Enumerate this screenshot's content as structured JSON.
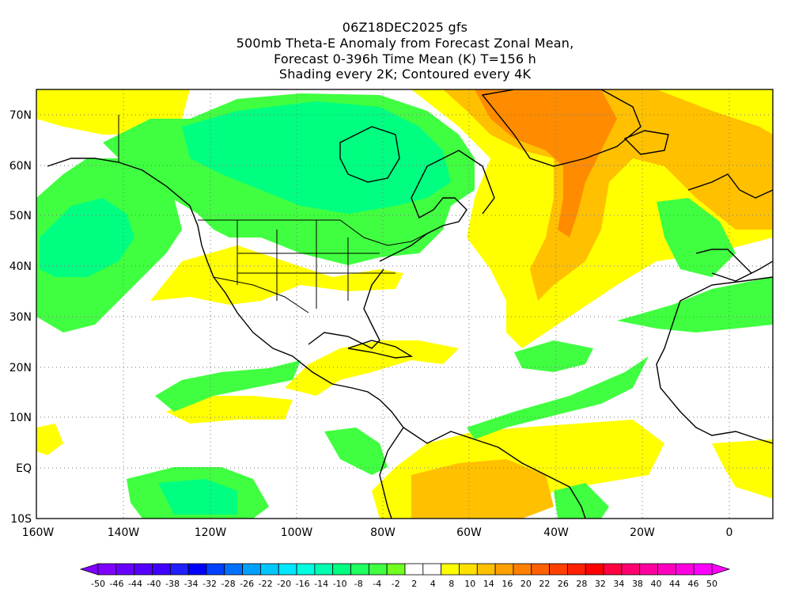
{
  "title": {
    "line1": "06Z18DEC2025 gfs",
    "line2": "500mb Theta-E Anomaly from Forecast Zonal Mean,",
    "line3": "Forecast 0-396h Time Mean (K) T=156 h",
    "line4": "Shading every 2K; Contoured every 4K"
  },
  "map": {
    "lat_range": [
      "10S",
      "75N"
    ],
    "lon_range": [
      "160W",
      "10E"
    ],
    "lat_ticks": [
      "70N",
      "60N",
      "50N",
      "40N",
      "30N",
      "20N",
      "10N",
      "EQ",
      "10S"
    ],
    "lon_ticks": [
      "160W",
      "140W",
      "120W",
      "100W",
      "80W",
      "60W",
      "40W",
      "20W",
      "0"
    ],
    "grid": "dotted"
  },
  "colorbar": {
    "labels": [
      "-50",
      "-46",
      "-44",
      "-40",
      "-38",
      "-34",
      "-32",
      "-28",
      "-26",
      "-22",
      "-20",
      "-16",
      "-14",
      "-10",
      "-8",
      "-4",
      "-2",
      "2",
      "4",
      "8",
      "10",
      "14",
      "16",
      "20",
      "22",
      "26",
      "28",
      "32",
      "34",
      "38",
      "40",
      "44",
      "46",
      "50"
    ],
    "colors": [
      "#7f00ff",
      "#6a00ff",
      "#5500ff",
      "#4000ff",
      "#2020ff",
      "#0000ff",
      "#0040ff",
      "#0070ff",
      "#00a0ff",
      "#00c8ff",
      "#00e8ff",
      "#00ffe0",
      "#00ffb0",
      "#00ff80",
      "#20ff60",
      "#40ff40",
      "#70ff20",
      "#ffffff",
      "#ffffff",
      "#ffff00",
      "#ffe000",
      "#ffc000",
      "#ffa000",
      "#ff8000",
      "#ff6000",
      "#ff4000",
      "#ff2000",
      "#ff0000",
      "#ff0040",
      "#ff0070",
      "#ff00a0",
      "#ff00c0",
      "#ff00e0",
      "#ff00ff"
    ]
  }
}
